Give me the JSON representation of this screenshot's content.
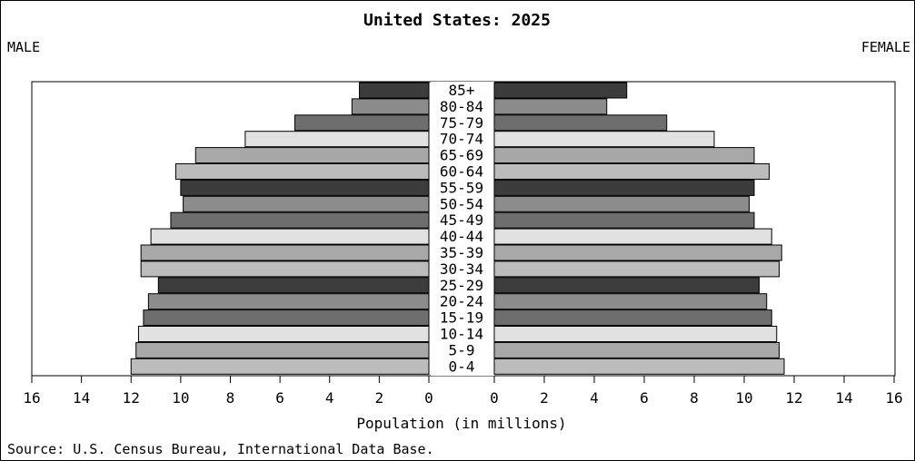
{
  "chart_data": {
    "type": "bar",
    "title": "United States: 2025",
    "left_label": "MALE",
    "right_label": "FEMALE",
    "xlabel": "Population (in millions)",
    "source": "Source: U.S. Census Bureau, International Data Base.",
    "categories": [
      "85+",
      "80-84",
      "75-79",
      "70-74",
      "65-69",
      "60-64",
      "55-59",
      "50-54",
      "45-49",
      "40-44",
      "35-39",
      "30-34",
      "25-29",
      "20-24",
      "15-19",
      "10-14",
      "5-9",
      "0-4"
    ],
    "series": [
      {
        "name": "MALE",
        "values": [
          2.8,
          3.1,
          5.4,
          7.4,
          9.4,
          10.2,
          10.0,
          9.9,
          10.4,
          11.2,
          11.6,
          11.6,
          10.9,
          11.3,
          11.5,
          11.7,
          11.8,
          12.0
        ]
      },
      {
        "name": "FEMALE",
        "values": [
          5.3,
          4.5,
          6.9,
          8.8,
          10.4,
          11.0,
          10.4,
          10.2,
          10.4,
          11.1,
          11.5,
          11.4,
          10.6,
          10.9,
          11.1,
          11.3,
          11.4,
          11.6
        ]
      }
    ],
    "bar_colors": [
      "#3c3c3c",
      "#8c8c8c",
      "#6e6e6e",
      "#e1e1e1",
      "#a8a8a8",
      "#bcbcbc",
      "#3c3c3c",
      "#8c8c8c",
      "#6e6e6e",
      "#e1e1e1",
      "#a8a8a8",
      "#bcbcbc",
      "#3c3c3c",
      "#8c8c8c",
      "#6e6e6e",
      "#e1e1e1",
      "#a8a8a8",
      "#bcbcbc"
    ],
    "xlim": [
      0,
      16
    ],
    "xticks": [
      "0",
      "2",
      "4",
      "6",
      "8",
      "10",
      "12",
      "14",
      "16"
    ],
    "grid": false,
    "legend": "none"
  }
}
